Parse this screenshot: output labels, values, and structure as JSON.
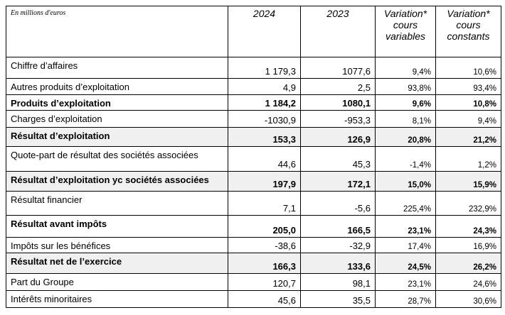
{
  "table": {
    "unit_note": "En millions d'euros",
    "columns": [
      "2024",
      "2023",
      "Variation* cours variables",
      "Variation* cours constants"
    ],
    "rows": [
      {
        "label": "Chiffre d’affaires",
        "values": [
          "1 179,3",
          "1077,6",
          "9,4%",
          "10,6%"
        ]
      },
      {
        "label": "Autres produits d’exploitation",
        "values": [
          "4,9",
          "2,5",
          "93,8%",
          "93,4%"
        ]
      },
      {
        "label": "Produits d’exploitation",
        "values": [
          "1 184,2",
          "1080,1",
          "9,6%",
          "10,8%"
        ],
        "bold": true
      },
      {
        "label": "Charges d’exploitation",
        "values": [
          "-1030,9",
          "-953,3",
          "8,1%",
          "9,4%"
        ]
      },
      {
        "label": "Résultat d’exploitation",
        "values": [
          "153,3",
          "126,9",
          "20,8%",
          "21,2%"
        ],
        "bold": true,
        "shaded": true
      },
      {
        "label": "Quote-part de résultat des sociétés associées",
        "values": [
          "44,6",
          "45,3",
          "-1,4%",
          "1,2%"
        ]
      },
      {
        "label": "Résultat d’exploitation yc sociétés associées",
        "values": [
          "197,9",
          "172,1",
          "15,0%",
          "15,9%"
        ],
        "bold": true,
        "shaded": true
      },
      {
        "label": "Résultat financier",
        "values": [
          "7,1",
          "-5,6",
          "225,4%",
          "232,9%"
        ]
      },
      {
        "label": "Résultat avant impôts",
        "values": [
          "205,0",
          "166,5",
          "23,1%",
          "24,3%"
        ],
        "bold": true
      },
      {
        "label": "Impôts sur les bénéfices",
        "values": [
          "-38,6",
          "-32,9",
          "17,4%",
          "16,9%"
        ]
      },
      {
        "label": "Résultat net de l’exercice",
        "values": [
          "166,3",
          "133,6",
          "24,5%",
          "26,2%"
        ],
        "bold": true,
        "shaded": true
      },
      {
        "label": "Part du Groupe",
        "values": [
          "120,7",
          "98,1",
          "23,1%",
          "24,6%"
        ]
      },
      {
        "label": "Intérêts minoritaires",
        "values": [
          "45,6",
          "35,5",
          "28,7%",
          "30,6%"
        ]
      }
    ]
  }
}
